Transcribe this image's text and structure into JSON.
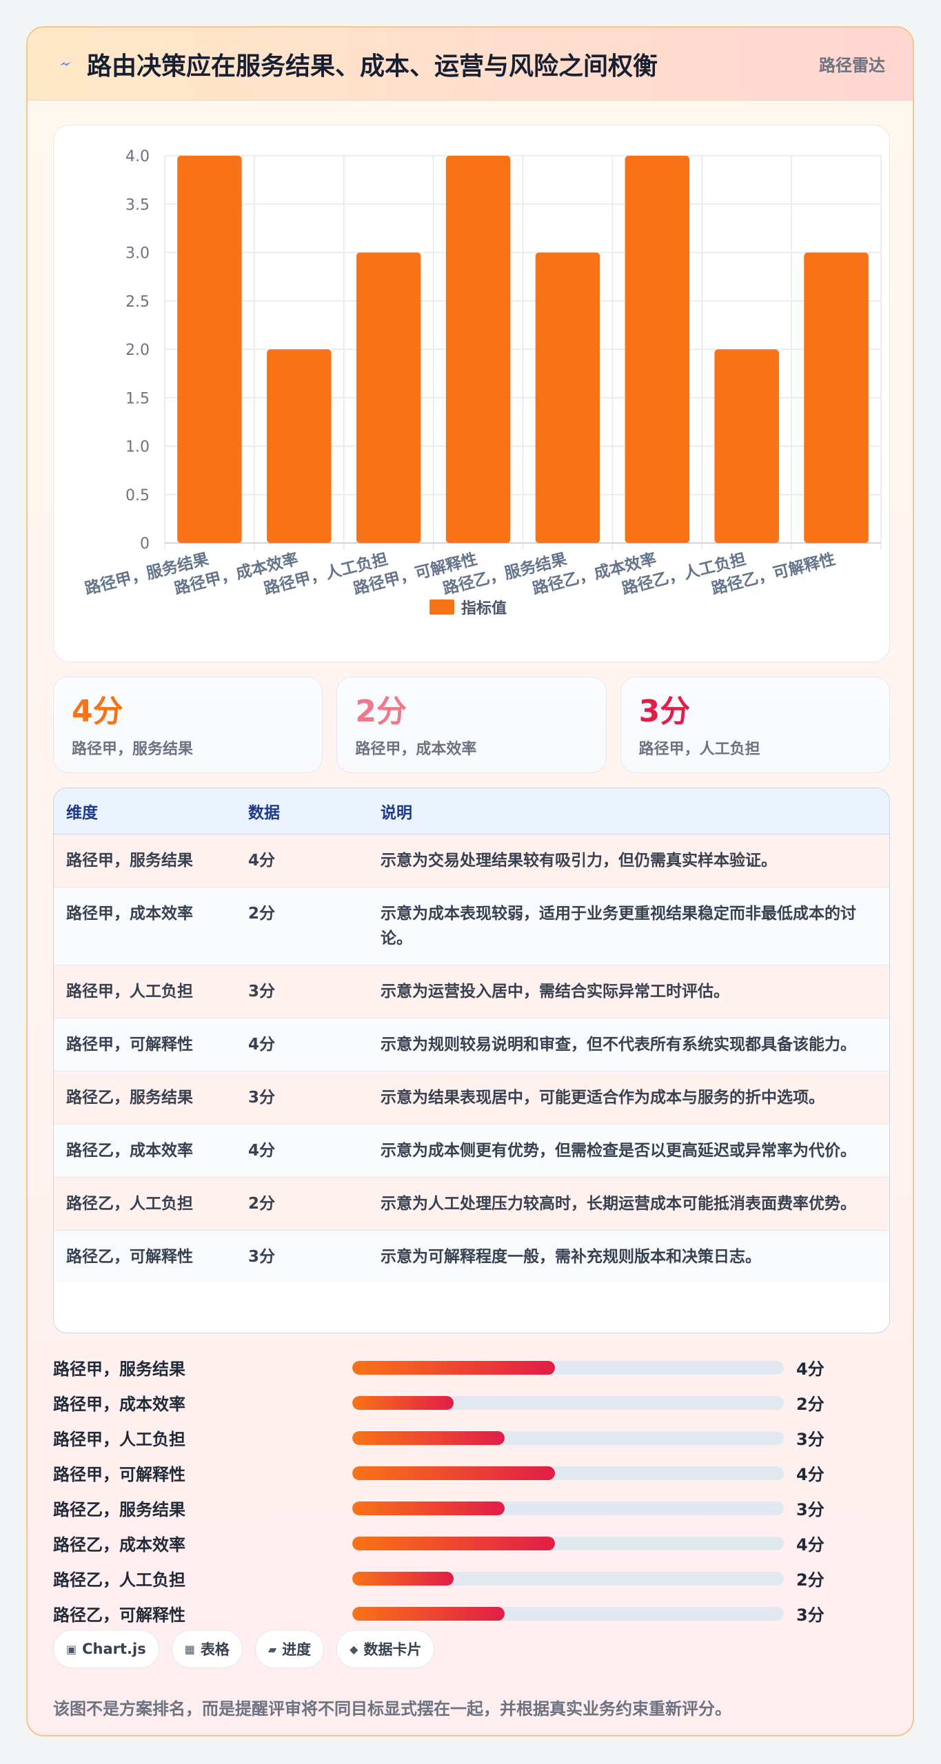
{
  "header": {
    "title": "路由决策应在服务结果、成本、运营与风险之间权衡",
    "tag": "路径雷达"
  },
  "colors": {
    "bar": "#f97316",
    "accent_orange": "#f97316",
    "accent_pink": "#f0788a",
    "accent_red": "#e11d48"
  },
  "chart_data": {
    "type": "bar",
    "categories": [
      "路径甲，服务结果",
      "路径甲，成本效率",
      "路径甲，人工负担",
      "路径甲，可解释性",
      "路径乙，服务结果",
      "路径乙，成本效率",
      "路径乙，人工负担",
      "路径乙，可解释性"
    ],
    "series": [
      {
        "name": "指标值",
        "values": [
          4,
          2,
          3,
          4,
          3,
          4,
          2,
          3
        ]
      }
    ],
    "yticks": [
      "0",
      "0.5",
      "1.0",
      "1.5",
      "2.0",
      "2.5",
      "3.0",
      "3.5",
      "4.0"
    ],
    "ylim": [
      0,
      4
    ],
    "grid": true,
    "legend": "bottom"
  },
  "kpis": [
    {
      "value": "4分",
      "label": "路径甲，服务结果"
    },
    {
      "value": "2分",
      "label": "路径甲，成本效率"
    },
    {
      "value": "3分",
      "label": "路径甲，人工负担"
    }
  ],
  "table": {
    "headers": [
      "维度",
      "数据",
      "说明"
    ],
    "rows": [
      {
        "dim": "路径甲，服务结果",
        "value": "4分",
        "desc": "示意为交易处理结果较有吸引力，但仍需真实样本验证。"
      },
      {
        "dim": "路径甲，成本效率",
        "value": "2分",
        "desc": "示意为成本表现较弱，适用于业务更重视结果稳定而非最低成本的讨论。"
      },
      {
        "dim": "路径甲，人工负担",
        "value": "3分",
        "desc": "示意为运营投入居中，需结合实际异常工时评估。"
      },
      {
        "dim": "路径甲，可解释性",
        "value": "4分",
        "desc": "示意为规则较易说明和审查，但不代表所有系统实现都具备该能力。"
      },
      {
        "dim": "路径乙，服务结果",
        "value": "3分",
        "desc": "示意为结果表现居中，可能更适合作为成本与服务的折中选项。"
      },
      {
        "dim": "路径乙，成本效率",
        "value": "4分",
        "desc": "示意为成本侧更有优势，但需检查是否以更高延迟或异常率为代价。"
      },
      {
        "dim": "路径乙，人工负担",
        "value": "2分",
        "desc": "示意为人工处理压力较高时，长期运营成本可能抵消表面费率优势。"
      },
      {
        "dim": "路径乙，可解释性",
        "value": "3分",
        "desc": "示意为可解释程度一般，需补充规则版本和决策日志。"
      }
    ]
  },
  "progress": [
    {
      "label": "路径甲，服务结果",
      "value_text": "4分",
      "fraction": 0.47
    },
    {
      "label": "路径甲，成本效率",
      "value_text": "2分",
      "fraction": 0.235
    },
    {
      "label": "路径甲，人工负担",
      "value_text": "3分",
      "fraction": 0.353
    },
    {
      "label": "路径甲，可解释性",
      "value_text": "4分",
      "fraction": 0.47
    },
    {
      "label": "路径乙，服务结果",
      "value_text": "3分",
      "fraction": 0.353
    },
    {
      "label": "路径乙，成本效率",
      "value_text": "4分",
      "fraction": 0.47
    },
    {
      "label": "路径乙，人工负担",
      "value_text": "2分",
      "fraction": 0.235
    },
    {
      "label": "路径乙，可解释性",
      "value_text": "3分",
      "fraction": 0.353
    }
  ],
  "chips": [
    {
      "icon": "chart-icon",
      "label": "Chart.js"
    },
    {
      "icon": "table-icon",
      "label": "表格"
    },
    {
      "icon": "progress-icon",
      "label": "进度"
    },
    {
      "icon": "card-icon",
      "label": "数据卡片"
    }
  ],
  "footnote": "该图不是方案排名，而是提醒评审将不同目标显式摆在一起，并根据真实业务约束重新评分。"
}
